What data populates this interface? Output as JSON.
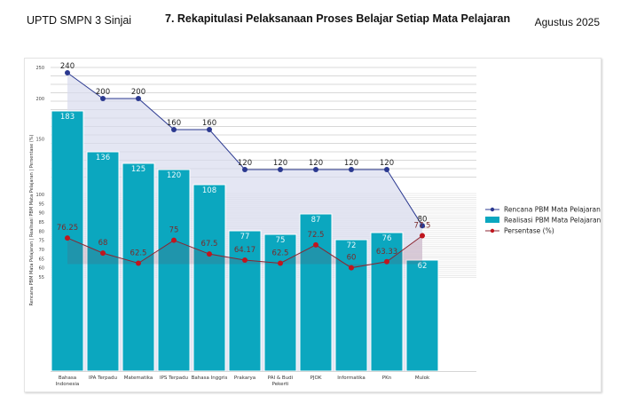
{
  "header": {
    "left": "UPTD SMPN 3 Sinjai",
    "title": "7. Rekapitulasi Pelaksanaan  Proses Belajar  Setiap Mata Pelajaran",
    "right": "Agustus 2025"
  },
  "colors": {
    "bar": "#0ba7bf",
    "plan_line": "#2b3990",
    "plan_fill": "#d9dbee",
    "pct_line": "#8b2530",
    "pct_marker": "#c0161e"
  },
  "chart_data": {
    "type": "bar",
    "title": "7. Rekapitulasi Pelaksanaan  Proses Belajar  Setiap Mata Pelajaran",
    "xlabel": "",
    "ylabel": "Rencana PBM Mata Pelajaran | Realisasi PBM Mata Pelajaran | Persentase (%)",
    "y_ticks_upper": [
      250,
      200,
      150
    ],
    "y_ticks_lower": [
      100,
      95,
      90,
      85,
      80,
      75,
      70,
      65,
      60,
      55
    ],
    "grid": true,
    "legend_position": "right",
    "categories": [
      "Bahasa Indonesia",
      "IPA Terpadu",
      "Matematika",
      "IPS Terpadu",
      "Bahasa Inggris",
      "Prakarya",
      "PAI & Budi Pekerti",
      "PJOK",
      "Informatika",
      "PKn",
      "Mulok"
    ],
    "series": [
      {
        "name": "Rencana PBM Mata Pelajaran",
        "type": "line",
        "values": [
          240,
          200,
          200,
          160,
          160,
          120,
          120,
          120,
          120,
          120,
          80
        ],
        "labels": [
          "240",
          "200",
          "200",
          "160",
          "160",
          "120",
          "120",
          "120",
          "120",
          "120",
          "80"
        ]
      },
      {
        "name": "Realisasi PBM Mata Pelajaran",
        "type": "bar",
        "values": [
          183,
          136,
          125,
          120,
          108,
          77,
          75,
          87,
          72,
          76,
          62
        ],
        "labels": [
          "183",
          "136",
          "125",
          "120",
          "108",
          "77",
          "75",
          "87",
          "72",
          "76",
          "62"
        ]
      },
      {
        "name": "Persentase (%)",
        "type": "line",
        "values": [
          76.25,
          68,
          62.5,
          75,
          67.5,
          64.17,
          62.5,
          72.5,
          60,
          63.33,
          77.5
        ],
        "labels": [
          "76.25",
          "68",
          "62.5",
          "75",
          "67.5",
          "64.17",
          "62.5",
          "72.5",
          "60",
          "63.33",
          "77.5"
        ]
      }
    ],
    "legend": [
      "Rencana PBM Mata Pelajaran",
      "Realisasi PBM Mata Pelajaran",
      "Persentase (%)"
    ]
  }
}
